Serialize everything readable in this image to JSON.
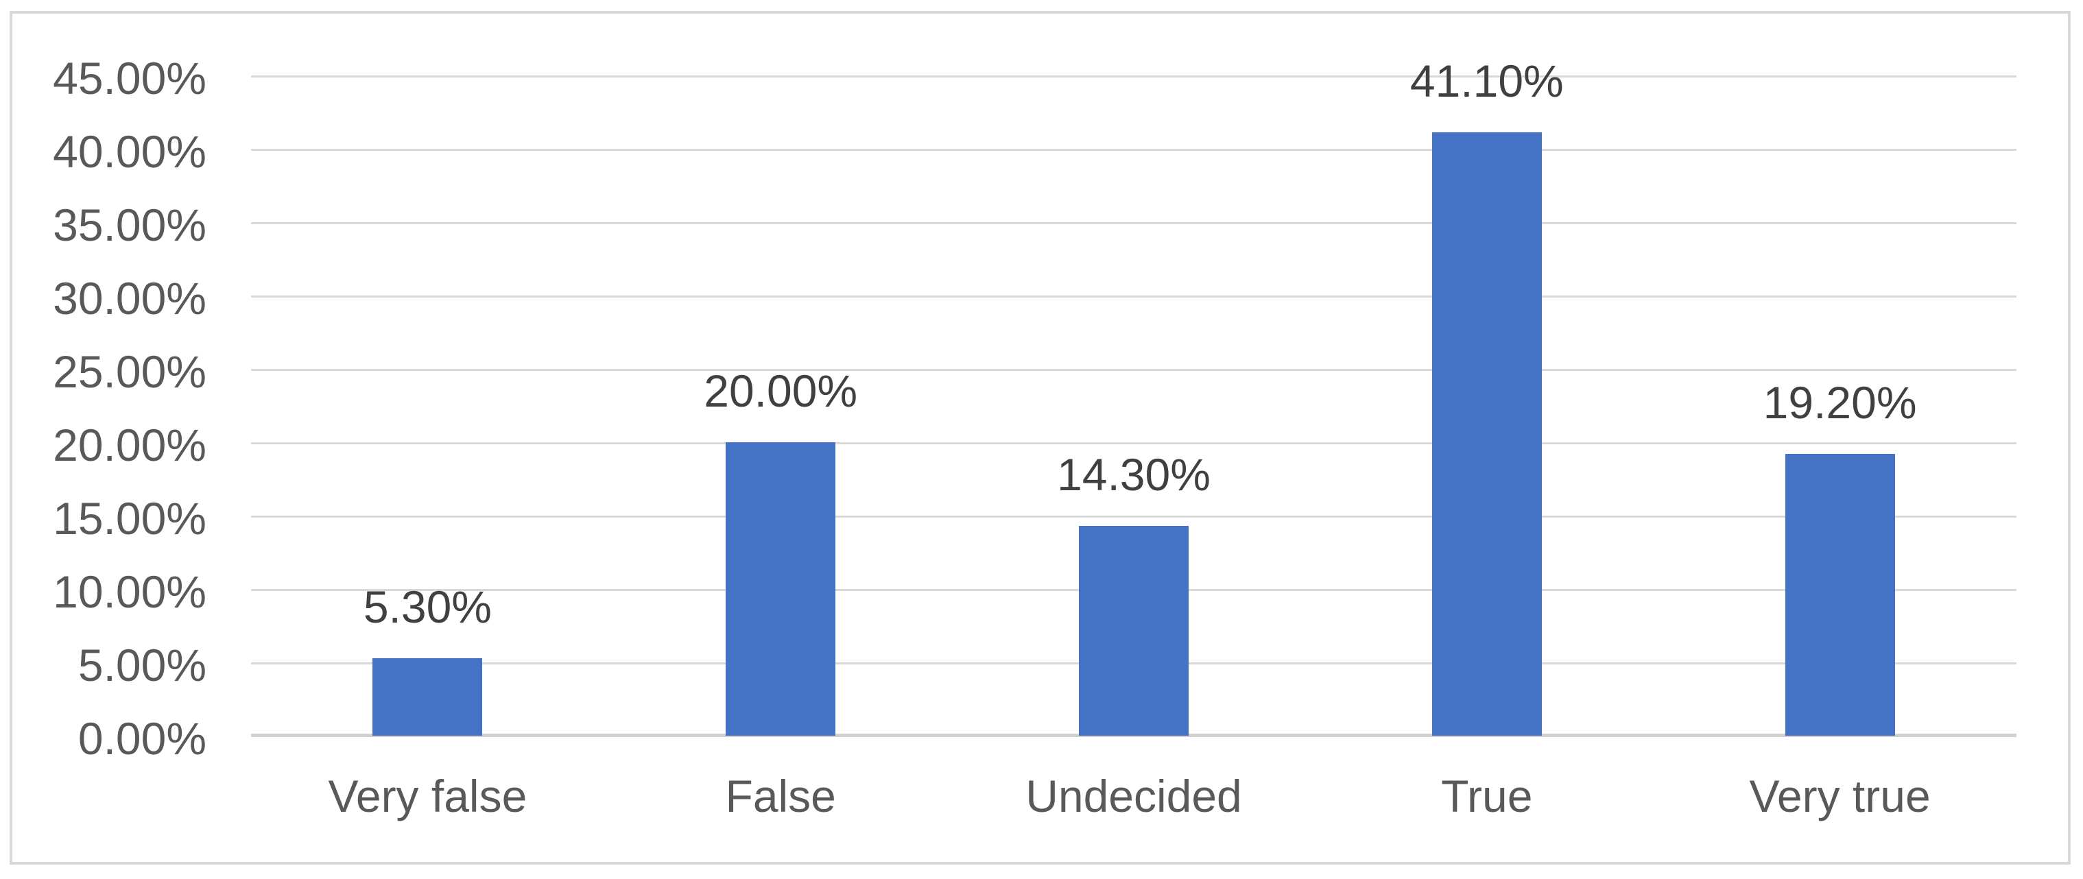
{
  "chart_data": {
    "type": "bar",
    "categories": [
      "Very false",
      "False",
      "Undecided",
      "True",
      "Very true"
    ],
    "values": [
      5.3,
      20.0,
      14.3,
      41.1,
      19.2
    ],
    "data_labels": [
      "5.30%",
      "20.00%",
      "14.30%",
      "41.10%",
      "19.20%"
    ],
    "y_ticks": [
      "45.00%",
      "40.00%",
      "35.00%",
      "30.00%",
      "25.00%",
      "20.00%",
      "15.00%",
      "10.00%",
      "5.00%",
      "0.00%"
    ],
    "ylim": [
      0,
      45
    ],
    "grid": "horizontal",
    "legend": "none",
    "bar_color": "#4472C4",
    "gridline_color": "#D9D9D9",
    "axis_line_color": "#D2D0D0",
    "axis_text_color": "#595959",
    "data_label_color": "#404040",
    "border_color": "#D9D9D9"
  }
}
